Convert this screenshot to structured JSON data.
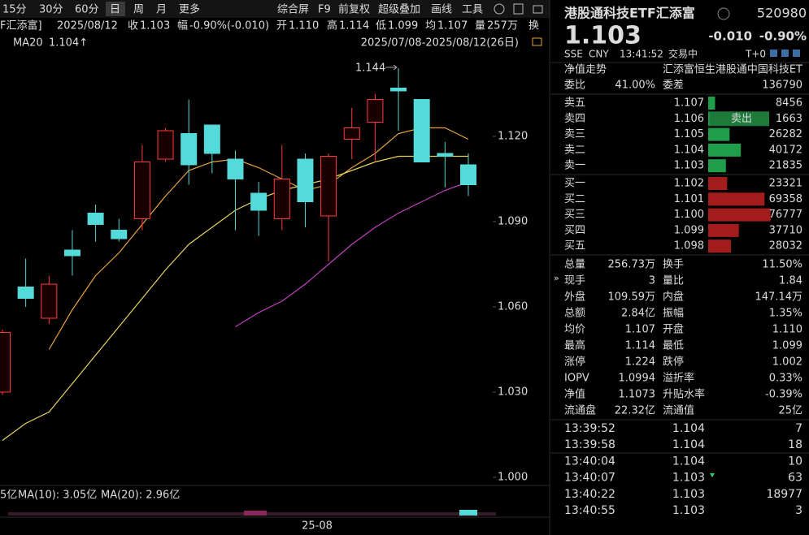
{
  "toolbar": {
    "periods": [
      "15分",
      "30分",
      "60分",
      "日",
      "周",
      "月",
      "更多"
    ],
    "tools": [
      "综合屏",
      "F9",
      "前复权",
      "超级叠加",
      "画线",
      "工具"
    ]
  },
  "info_bar": {
    "name": "F汇添富]",
    "date": "2025/08/12",
    "items": [
      {
        "label": "收",
        "value": "1.103",
        "color": "#2ed16a"
      },
      {
        "label": "幅",
        "value": "-0.90%(-0.010)",
        "color": "#2ed16a"
      },
      {
        "label": "开",
        "value": "1.110",
        "color": "#2ed16a"
      },
      {
        "label": "高",
        "value": "1.114",
        "color": "#ff4040"
      },
      {
        "label": "低",
        "value": "1.099",
        "color": "#2ed16a"
      },
      {
        "label": "均",
        "value": "1.107",
        "color": "#2ed16a"
      },
      {
        "label": "量",
        "value": "257万",
        "color": "#dcdcdc"
      }
    ],
    "tail": "换"
  },
  "ma_bar": {
    "label": "MA20",
    "value": "1.104↑",
    "range": "2025/07/08-2025/08/12(26日)"
  },
  "chart": {
    "ylim": [
      0.998,
      1.168
    ],
    "yticks": [
      {
        "value": 1.12,
        "label": "1.120"
      },
      {
        "value": 1.09,
        "label": "1.090"
      },
      {
        "value": 1.06,
        "label": "1.060"
      },
      {
        "value": 1.03,
        "label": "1.030"
      },
      {
        "value": 1.0,
        "label": "1.000"
      }
    ],
    "up_color": "#ff3b3b",
    "down_color": "#55dada",
    "candles": [
      {
        "open": 1.03,
        "high": 1.052,
        "low": 1.029,
        "close": 1.051
      },
      {
        "open": 1.067,
        "high": 1.077,
        "low": 1.06,
        "close": 1.063
      },
      {
        "open": 1.056,
        "high": 1.071,
        "low": 1.054,
        "close": 1.068
      },
      {
        "open": 1.08,
        "high": 1.087,
        "low": 1.071,
        "close": 1.078
      },
      {
        "open": 1.093,
        "high": 1.096,
        "low": 1.083,
        "close": 1.089
      },
      {
        "open": 1.087,
        "high": 1.091,
        "low": 1.083,
        "close": 1.084
      },
      {
        "open": 1.091,
        "high": 1.117,
        "low": 1.087,
        "close": 1.111
      },
      {
        "open": 1.112,
        "high": 1.123,
        "low": 1.111,
        "close": 1.122
      },
      {
        "open": 1.121,
        "high": 1.133,
        "low": 1.103,
        "close": 1.11
      },
      {
        "open": 1.124,
        "high": 1.124,
        "low": 1.107,
        "close": 1.114
      },
      {
        "open": 1.112,
        "high": 1.115,
        "low": 1.087,
        "close": 1.105
      },
      {
        "open": 1.1,
        "high": 1.104,
        "low": 1.085,
        "close": 1.094
      },
      {
        "open": 1.091,
        "high": 1.117,
        "low": 1.087,
        "close": 1.105
      },
      {
        "open": 1.112,
        "high": 1.114,
        "low": 1.088,
        "close": 1.097
      },
      {
        "open": 1.092,
        "high": 1.114,
        "low": 1.076,
        "close": 1.113
      },
      {
        "open": 1.119,
        "high": 1.13,
        "low": 1.112,
        "close": 1.123
      },
      {
        "open": 1.125,
        "high": 1.135,
        "low": 1.111,
        "close": 1.133
      },
      {
        "open": 1.137,
        "high": 1.144,
        "low": 1.122,
        "close": 1.136
      },
      {
        "open": 1.133,
        "high": 1.133,
        "low": 1.111,
        "close": 1.111
      },
      {
        "open": 1.114,
        "high": 1.118,
        "low": 1.102,
        "close": 1.113
      },
      {
        "open": 1.11,
        "high": 1.114,
        "low": 1.099,
        "close": 1.103
      }
    ],
    "high_label": "1.144",
    "ma_lines": [
      {
        "color": "#e8a33a",
        "values": [
          null,
          null,
          1.045,
          1.059,
          1.071,
          1.079,
          1.089,
          1.099,
          1.108,
          1.111,
          1.112,
          1.109,
          1.105,
          1.101,
          1.103,
          1.109,
          1.114,
          1.121,
          1.123,
          1.123,
          1.119
        ]
      },
      {
        "color": "#e6d45a",
        "values": [
          1.013,
          1.019,
          1.023,
          1.033,
          1.043,
          1.053,
          1.063,
          1.073,
          1.082,
          1.088,
          1.094,
          1.098,
          1.101,
          1.103,
          1.105,
          1.108,
          1.111,
          1.113,
          1.113,
          1.113,
          1.113
        ]
      },
      {
        "color": "#c040c0",
        "values": [
          null,
          null,
          null,
          null,
          null,
          null,
          null,
          null,
          null,
          null,
          1.053,
          1.058,
          1.062,
          1.068,
          1.075,
          1.082,
          1.088,
          1.093,
          1.097,
          1.101,
          1.104
        ]
      }
    ],
    "volume_labels": [
      {
        "text": "5亿",
        "color": "#dcdcdc"
      },
      {
        "text": "MA(10): 3.05亿",
        "color": "#e8a33a"
      },
      {
        "text": "MA(20): 2.96亿",
        "color": "#c040c0"
      }
    ],
    "x_label": "25-08"
  },
  "quote": {
    "name": "港股通科技ETF汇添富",
    "code": "520980",
    "price": "1.103",
    "change": "-0.010",
    "change_pct": "-0.90%",
    "market": "SSE",
    "currency": "CNY",
    "time": "13:41:52",
    "status": "交易中",
    "t0": "T+0",
    "nav_label": "净值走势",
    "fund_name": "汇添富恒生港股通中国科技ET",
    "ratio_label": "委比",
    "ratio": "41.00%",
    "diff_label": "委差",
    "diff": "136790"
  },
  "asks": [
    {
      "label": "卖五",
      "price": "1.107",
      "volume": 8456
    },
    {
      "label": "卖四",
      "price": "1.106",
      "volume": 1663
    },
    {
      "label": "卖三",
      "price": "1.105",
      "volume": 26282
    },
    {
      "label": "卖二",
      "price": "1.104",
      "volume": 40172
    },
    {
      "label": "卖一",
      "price": "1.103",
      "volume": 21835
    }
  ],
  "sell_button": "卖出",
  "bids": [
    {
      "label": "买一",
      "price": "1.102",
      "volume": 23321
    },
    {
      "label": "买二",
      "price": "1.101",
      "volume": 69358
    },
    {
      "label": "买三",
      "price": "1.100",
      "volume": 76777
    },
    {
      "label": "买四",
      "price": "1.099",
      "volume": 37710
    },
    {
      "label": "买五",
      "price": "1.098",
      "volume": 28032
    }
  ],
  "stats": [
    [
      {
        "label": "总量",
        "value": "256.73万",
        "color": "#dcdcdc"
      },
      {
        "label": "换手",
        "value": "11.50%",
        "color": "#dcdcdc"
      }
    ],
    [
      {
        "label": "现手",
        "value": "3",
        "color": "#dcdcdc"
      },
      {
        "label": "量比",
        "value": "1.84",
        "color": "#dcdcdc"
      }
    ],
    [
      {
        "label": "外盘",
        "value": "109.59万",
        "color": "#ff4040"
      },
      {
        "label": "内盘",
        "value": "147.14万",
        "color": "#2ed16a"
      }
    ],
    [
      {
        "label": "总额",
        "value": "2.84亿",
        "color": "#dcdcdc"
      },
      {
        "label": "振幅",
        "value": "1.35%",
        "color": "#dcdcdc"
      }
    ],
    [
      {
        "label": "均价",
        "value": "1.107",
        "color": "#2ed16a"
      },
      {
        "label": "开盘",
        "value": "1.110",
        "color": "#2ed16a"
      }
    ],
    [
      {
        "label": "最高",
        "value": "1.114",
        "color": "#ff4040"
      },
      {
        "label": "最低",
        "value": "1.099",
        "color": "#2ed16a"
      }
    ],
    [
      {
        "label": "涨停",
        "value": "1.224",
        "color": "#ff4040"
      },
      {
        "label": "跌停",
        "value": "1.002",
        "color": "#2ed16a"
      }
    ],
    [
      {
        "label": "IOPV",
        "value": "1.0994",
        "color": "#dcdcdc"
      },
      {
        "label": "溢折率",
        "value": "0.33%",
        "color": "#ff4040"
      }
    ],
    [
      {
        "label": "净值",
        "value": "1.1073",
        "color": "#ff4040"
      },
      {
        "label": "升贴水率",
        "value": "-0.39%",
        "color": "#2ed16a"
      }
    ],
    [
      {
        "label": "流通盘",
        "value": "22.32亿",
        "color": "#dcdcdc"
      },
      {
        "label": "流通值",
        "value": "25亿",
        "color": "#dcdcdc"
      }
    ]
  ],
  "trades": [
    {
      "time": "13:39:52",
      "price": "1.104",
      "volume": 7,
      "color": "#ff4040"
    },
    {
      "time": "13:39:58",
      "price": "1.104",
      "volume": 18,
      "color": "#ff4040"
    },
    {
      "time": "13:40:04",
      "price": "1.104",
      "volume": 10,
      "color": "#ff4040"
    },
    {
      "time": "13:40:07",
      "price": "1.103",
      "volume": 63,
      "color": "#2ed16a"
    },
    {
      "time": "13:40:22",
      "price": "1.103",
      "volume": 18977,
      "color": "#ff4040"
    },
    {
      "time": "13:40:55",
      "price": "1.103",
      "volume": 3,
      "color": "#ff4040"
    }
  ]
}
